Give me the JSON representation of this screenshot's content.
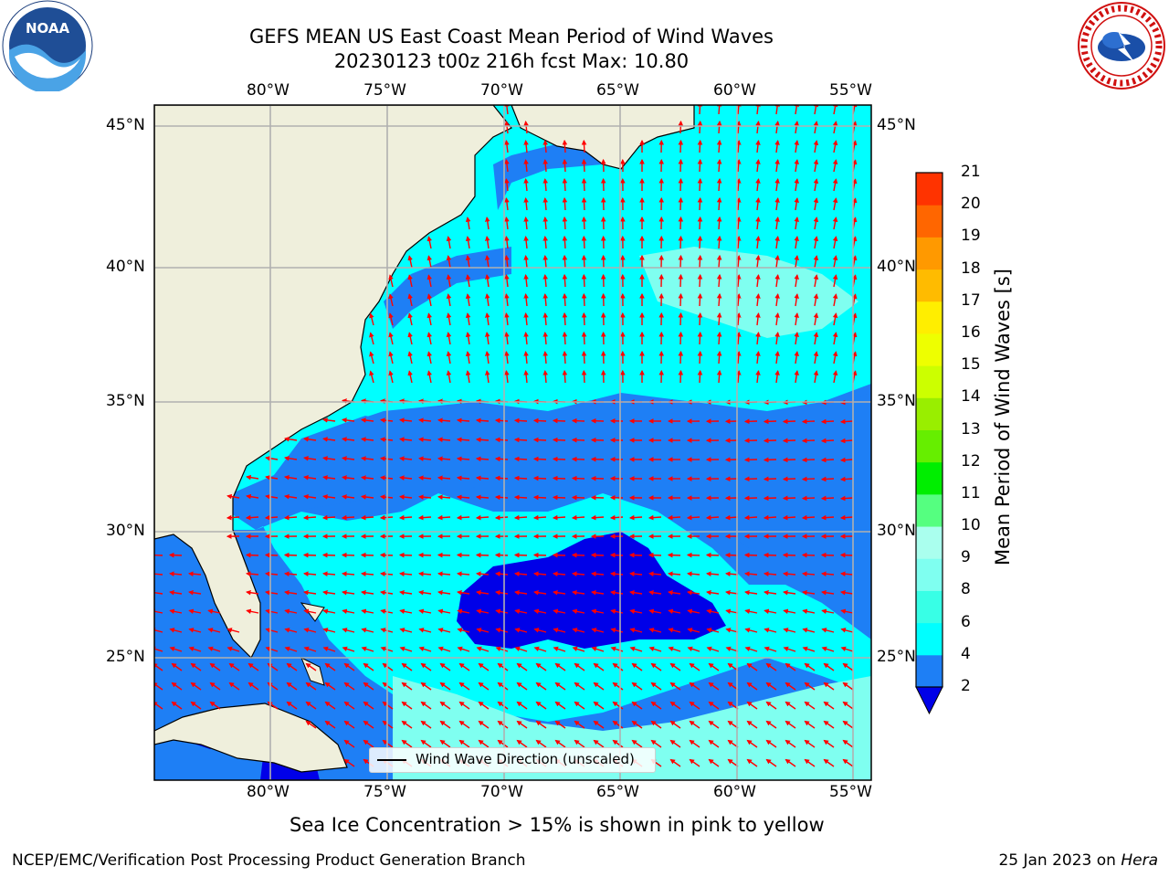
{
  "header": {
    "title_line1": "GEFS MEAN US East Coast Mean Period of Wind Waves",
    "title_line2": "20230123 t00z 216h fcst   Max: 10.80"
  },
  "logos": {
    "left": {
      "name": "NOAA",
      "text": "NOAA"
    },
    "right": {
      "name": "National Weather Service"
    }
  },
  "map": {
    "lon_labels": [
      "80°W",
      "75°W",
      "70°W",
      "65°W",
      "60°W",
      "55°W"
    ],
    "lat_labels": [
      "45°N",
      "40°N",
      "35°N",
      "30°N",
      "25°N"
    ],
    "legend_label": "Wind Wave Direction (unscaled)",
    "land_color": "#efefdc",
    "sea_colors": {
      "blue": "#1e7ff5",
      "deep": "#0000e8",
      "cyan": "#00ffff",
      "light_cyan": "#7ffff0"
    },
    "arrow_color": "#ff0000"
  },
  "colorbar": {
    "label": "Mean Period of Wind Waves [s]",
    "ticks": [
      "2",
      "4",
      "6",
      "8",
      "9",
      "10",
      "11",
      "12",
      "13",
      "14",
      "15",
      "16",
      "17",
      "18",
      "19",
      "20",
      "21"
    ],
    "colors": [
      "#1e7ff5",
      "#00ffff",
      "#38ffe6",
      "#7ffff0",
      "#aaffee",
      "#55ff80",
      "#00ee00",
      "#66ee00",
      "#99ee00",
      "#ccff00",
      "#eeff00",
      "#ffee00",
      "#ffbb00",
      "#ff9900",
      "#ff6600",
      "#ff3300",
      "#ff0000"
    ],
    "extend_color": "#0000e8"
  },
  "footer": {
    "subtitle": "Sea Ice Concentration > 15% is shown in pink to yellow",
    "left": "NCEP/EMC/Verification Post Processing Product Generation Branch",
    "right_date": "25 Jan 2023 on",
    "right_host": "Hera"
  }
}
